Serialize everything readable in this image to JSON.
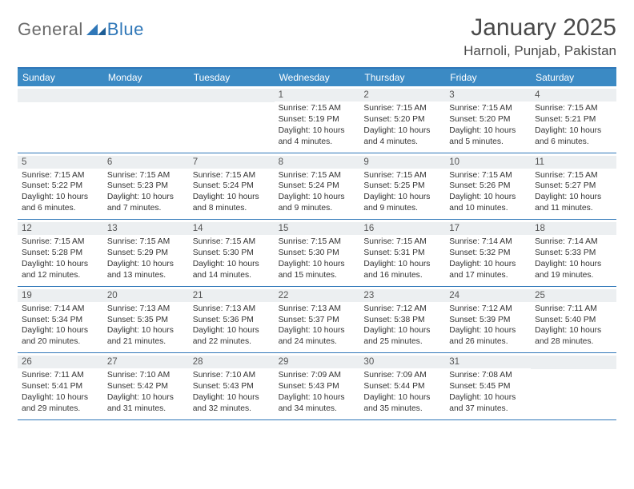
{
  "logo": {
    "text1": "General",
    "text2": "Blue"
  },
  "title": "January 2025",
  "location": "Harnoli, Punjab, Pakistan",
  "colors": {
    "brand_blue": "#2f77b8",
    "header_blue": "#3b8ac4",
    "daynum_bg": "#eceff1",
    "text_gray": "#4a4a4a",
    "logo_gray": "#6a6a6a"
  },
  "day_names": [
    "Sunday",
    "Monday",
    "Tuesday",
    "Wednesday",
    "Thursday",
    "Friday",
    "Saturday"
  ],
  "weeks": [
    [
      {
        "n": "",
        "sr": "",
        "ss": "",
        "dl": ""
      },
      {
        "n": "",
        "sr": "",
        "ss": "",
        "dl": ""
      },
      {
        "n": "",
        "sr": "",
        "ss": "",
        "dl": ""
      },
      {
        "n": "1",
        "sr": "Sunrise: 7:15 AM",
        "ss": "Sunset: 5:19 PM",
        "dl": "Daylight: 10 hours and 4 minutes."
      },
      {
        "n": "2",
        "sr": "Sunrise: 7:15 AM",
        "ss": "Sunset: 5:20 PM",
        "dl": "Daylight: 10 hours and 4 minutes."
      },
      {
        "n": "3",
        "sr": "Sunrise: 7:15 AM",
        "ss": "Sunset: 5:20 PM",
        "dl": "Daylight: 10 hours and 5 minutes."
      },
      {
        "n": "4",
        "sr": "Sunrise: 7:15 AM",
        "ss": "Sunset: 5:21 PM",
        "dl": "Daylight: 10 hours and 6 minutes."
      }
    ],
    [
      {
        "n": "5",
        "sr": "Sunrise: 7:15 AM",
        "ss": "Sunset: 5:22 PM",
        "dl": "Daylight: 10 hours and 6 minutes."
      },
      {
        "n": "6",
        "sr": "Sunrise: 7:15 AM",
        "ss": "Sunset: 5:23 PM",
        "dl": "Daylight: 10 hours and 7 minutes."
      },
      {
        "n": "7",
        "sr": "Sunrise: 7:15 AM",
        "ss": "Sunset: 5:24 PM",
        "dl": "Daylight: 10 hours and 8 minutes."
      },
      {
        "n": "8",
        "sr": "Sunrise: 7:15 AM",
        "ss": "Sunset: 5:24 PM",
        "dl": "Daylight: 10 hours and 9 minutes."
      },
      {
        "n": "9",
        "sr": "Sunrise: 7:15 AM",
        "ss": "Sunset: 5:25 PM",
        "dl": "Daylight: 10 hours and 9 minutes."
      },
      {
        "n": "10",
        "sr": "Sunrise: 7:15 AM",
        "ss": "Sunset: 5:26 PM",
        "dl": "Daylight: 10 hours and 10 minutes."
      },
      {
        "n": "11",
        "sr": "Sunrise: 7:15 AM",
        "ss": "Sunset: 5:27 PM",
        "dl": "Daylight: 10 hours and 11 minutes."
      }
    ],
    [
      {
        "n": "12",
        "sr": "Sunrise: 7:15 AM",
        "ss": "Sunset: 5:28 PM",
        "dl": "Daylight: 10 hours and 12 minutes."
      },
      {
        "n": "13",
        "sr": "Sunrise: 7:15 AM",
        "ss": "Sunset: 5:29 PM",
        "dl": "Daylight: 10 hours and 13 minutes."
      },
      {
        "n": "14",
        "sr": "Sunrise: 7:15 AM",
        "ss": "Sunset: 5:30 PM",
        "dl": "Daylight: 10 hours and 14 minutes."
      },
      {
        "n": "15",
        "sr": "Sunrise: 7:15 AM",
        "ss": "Sunset: 5:30 PM",
        "dl": "Daylight: 10 hours and 15 minutes."
      },
      {
        "n": "16",
        "sr": "Sunrise: 7:15 AM",
        "ss": "Sunset: 5:31 PM",
        "dl": "Daylight: 10 hours and 16 minutes."
      },
      {
        "n": "17",
        "sr": "Sunrise: 7:14 AM",
        "ss": "Sunset: 5:32 PM",
        "dl": "Daylight: 10 hours and 17 minutes."
      },
      {
        "n": "18",
        "sr": "Sunrise: 7:14 AM",
        "ss": "Sunset: 5:33 PM",
        "dl": "Daylight: 10 hours and 19 minutes."
      }
    ],
    [
      {
        "n": "19",
        "sr": "Sunrise: 7:14 AM",
        "ss": "Sunset: 5:34 PM",
        "dl": "Daylight: 10 hours and 20 minutes."
      },
      {
        "n": "20",
        "sr": "Sunrise: 7:13 AM",
        "ss": "Sunset: 5:35 PM",
        "dl": "Daylight: 10 hours and 21 minutes."
      },
      {
        "n": "21",
        "sr": "Sunrise: 7:13 AM",
        "ss": "Sunset: 5:36 PM",
        "dl": "Daylight: 10 hours and 22 minutes."
      },
      {
        "n": "22",
        "sr": "Sunrise: 7:13 AM",
        "ss": "Sunset: 5:37 PM",
        "dl": "Daylight: 10 hours and 24 minutes."
      },
      {
        "n": "23",
        "sr": "Sunrise: 7:12 AM",
        "ss": "Sunset: 5:38 PM",
        "dl": "Daylight: 10 hours and 25 minutes."
      },
      {
        "n": "24",
        "sr": "Sunrise: 7:12 AM",
        "ss": "Sunset: 5:39 PM",
        "dl": "Daylight: 10 hours and 26 minutes."
      },
      {
        "n": "25",
        "sr": "Sunrise: 7:11 AM",
        "ss": "Sunset: 5:40 PM",
        "dl": "Daylight: 10 hours and 28 minutes."
      }
    ],
    [
      {
        "n": "26",
        "sr": "Sunrise: 7:11 AM",
        "ss": "Sunset: 5:41 PM",
        "dl": "Daylight: 10 hours and 29 minutes."
      },
      {
        "n": "27",
        "sr": "Sunrise: 7:10 AM",
        "ss": "Sunset: 5:42 PM",
        "dl": "Daylight: 10 hours and 31 minutes."
      },
      {
        "n": "28",
        "sr": "Sunrise: 7:10 AM",
        "ss": "Sunset: 5:43 PM",
        "dl": "Daylight: 10 hours and 32 minutes."
      },
      {
        "n": "29",
        "sr": "Sunrise: 7:09 AM",
        "ss": "Sunset: 5:43 PM",
        "dl": "Daylight: 10 hours and 34 minutes."
      },
      {
        "n": "30",
        "sr": "Sunrise: 7:09 AM",
        "ss": "Sunset: 5:44 PM",
        "dl": "Daylight: 10 hours and 35 minutes."
      },
      {
        "n": "31",
        "sr": "Sunrise: 7:08 AM",
        "ss": "Sunset: 5:45 PM",
        "dl": "Daylight: 10 hours and 37 minutes."
      },
      {
        "n": "",
        "sr": "",
        "ss": "",
        "dl": ""
      }
    ]
  ]
}
